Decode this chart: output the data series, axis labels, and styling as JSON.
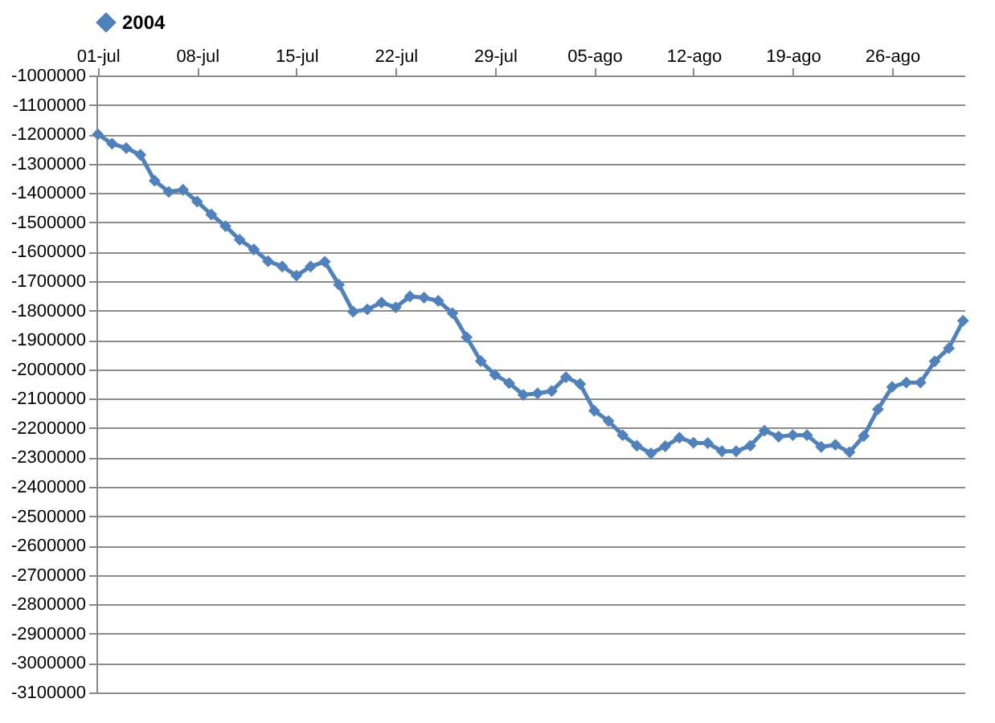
{
  "chart_data": {
    "type": "line",
    "categories": [
      "01-jul",
      null,
      null,
      null,
      null,
      null,
      null,
      "08-jul",
      null,
      null,
      null,
      null,
      null,
      null,
      "15-jul",
      null,
      null,
      null,
      null,
      null,
      null,
      "22-jul",
      null,
      null,
      null,
      null,
      null,
      null,
      "29-jul",
      null,
      null,
      null,
      null,
      null,
      null,
      "05-ago",
      null,
      null,
      null,
      null,
      null,
      null,
      "12-ago",
      null,
      null,
      null,
      null,
      null,
      null,
      "19-ago",
      null,
      null,
      null,
      null,
      null,
      null,
      "26-ago",
      null,
      null,
      null,
      null,
      null
    ],
    "series": [
      {
        "name": "2004",
        "color": "#4f81bd",
        "values": [
          -1200000,
          -1232000,
          -1247000,
          -1270000,
          -1358000,
          -1396000,
          -1389000,
          -1429000,
          -1473000,
          -1513000,
          -1559000,
          -1592000,
          -1632000,
          -1650000,
          -1681000,
          -1650000,
          -1634000,
          -1712000,
          -1804000,
          -1796000,
          -1773000,
          -1789000,
          -1752000,
          -1756000,
          -1767000,
          -1809000,
          -1891000,
          -1972000,
          -2019000,
          -2047000,
          -2087000,
          -2082000,
          -2074000,
          -2027000,
          -2050000,
          -2141000,
          -2176000,
          -2224000,
          -2260000,
          -2286000,
          -2262000,
          -2233000,
          -2250000,
          -2251000,
          -2279000,
          -2279000,
          -2260000,
          -2209000,
          -2229000,
          -2224000,
          -2224000,
          -2264000,
          -2257000,
          -2282000,
          -2227000,
          -2136000,
          -2060000,
          -2045000,
          -2045000,
          -1973000,
          -1928000,
          -1835000
        ]
      }
    ],
    "ylim": [
      -3100000,
      -1000000
    ],
    "yticks": [
      -1000000,
      -1100000,
      -1200000,
      -1300000,
      -1400000,
      -1500000,
      -1600000,
      -1700000,
      -1800000,
      -1900000,
      -2000000,
      -2100000,
      -2200000,
      -2300000,
      -2400000,
      -2500000,
      -2600000,
      -2700000,
      -2800000,
      -2900000,
      -3000000,
      -3100000
    ],
    "grid": "y",
    "legend": "top",
    "marker": "diamond",
    "line_style": "solid"
  }
}
